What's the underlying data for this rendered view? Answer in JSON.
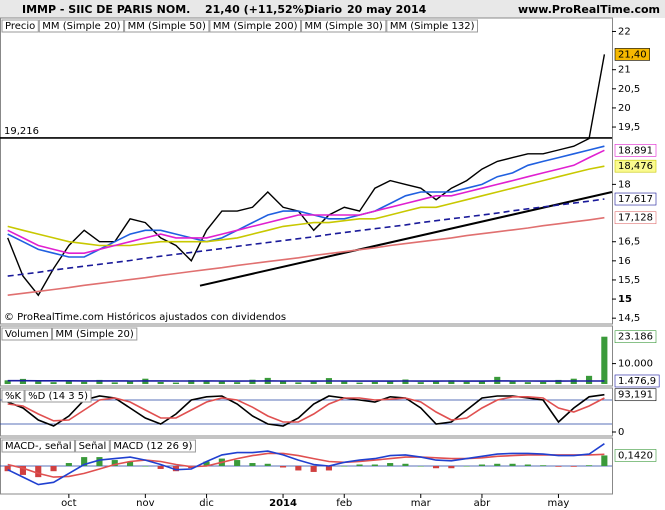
{
  "header": {
    "title": "IMMP - SIIC DE PARIS NOM.",
    "quote": "21,40 (+11,52%)",
    "period": "Diario",
    "date": "20 may 2014",
    "site": "www.ProRealTime.com"
  },
  "chart_data": [
    {
      "type": "line",
      "ylim": [
        14.4,
        22.3
      ],
      "yticks": [
        {
          "value": 14.5,
          "label": "14,5"
        },
        15,
        {
          "value": 15.5,
          "label": "15,5"
        },
        16,
        {
          "value": 16.5,
          "label": "16,5"
        },
        18,
        {
          "value": 19.5,
          "label": "19,5"
        },
        20,
        {
          "value": 20.5,
          "label": "20,5"
        },
        21,
        22
      ],
      "hline": {
        "value": 19.216,
        "label": "19,216"
      },
      "trendlines": [
        {
          "values": [
            15.35,
            17.8
          ],
          "color": "#000000"
        }
      ],
      "note": "© ProRealTime.com  Históricos ajustados con dividendos",
      "series": [
        {
          "name": "Precio",
          "color": "#000000",
          "last_label": "21,40",
          "label_background": "#f5b800",
          "values": [
            16.6,
            15.6,
            15.1,
            15.8,
            16.4,
            16.8,
            16.5,
            16.5,
            17.1,
            17.0,
            16.6,
            16.4,
            16.0,
            16.8,
            17.3,
            17.3,
            17.4,
            17.8,
            17.4,
            17.3,
            16.8,
            17.2,
            17.4,
            17.3,
            17.9,
            18.1,
            18.0,
            17.9,
            17.6,
            17.9,
            18.1,
            18.4,
            18.6,
            18.7,
            18.8,
            18.8,
            18.9,
            19.0,
            19.2,
            21.4
          ]
        },
        {
          "name": "MM (Simple 20)",
          "color": "#2060e0",
          "values": [
            16.7,
            16.5,
            16.3,
            16.2,
            16.1,
            16.1,
            16.3,
            16.5,
            16.7,
            16.8,
            16.8,
            16.7,
            16.6,
            16.5,
            16.6,
            16.8,
            17.0,
            17.2,
            17.3,
            17.3,
            17.2,
            17.1,
            17.1,
            17.2,
            17.3,
            17.5,
            17.7,
            17.8,
            17.8,
            17.8,
            17.9,
            18.0,
            18.2,
            18.3,
            18.5,
            18.6,
            18.7,
            18.8,
            18.9,
            19.0
          ]
        },
        {
          "name": "MM (Simple 50)",
          "color": "#c8c800",
          "last_label": "18,476",
          "label_background": "#fafa90",
          "values": [
            16.9,
            16.8,
            16.7,
            16.6,
            16.5,
            16.45,
            16.4,
            16.4,
            16.4,
            16.45,
            16.5,
            16.5,
            16.5,
            16.5,
            16.55,
            16.6,
            16.7,
            16.8,
            16.9,
            16.95,
            17.0,
            17.0,
            17.05,
            17.1,
            17.1,
            17.2,
            17.3,
            17.4,
            17.4,
            17.5,
            17.6,
            17.7,
            17.8,
            17.9,
            18.0,
            18.1,
            18.2,
            18.3,
            18.4,
            18.476
          ]
        },
        {
          "name": "MM (Simple 200)",
          "color": "#e07070",
          "last_label": "17,128",
          "label_background": "#ffffff",
          "values": [
            15.1,
            15.15,
            15.2,
            15.25,
            15.3,
            15.36,
            15.41,
            15.46,
            15.51,
            15.56,
            15.62,
            15.67,
            15.72,
            15.77,
            15.82,
            15.88,
            15.93,
            15.98,
            16.03,
            16.08,
            16.14,
            16.19,
            16.24,
            16.29,
            16.34,
            16.4,
            16.45,
            16.5,
            16.55,
            16.6,
            16.66,
            16.71,
            16.76,
            16.81,
            16.86,
            16.92,
            16.97,
            17.02,
            17.07,
            17.128
          ]
        },
        {
          "name": "MM (Simple 30)",
          "color": "#e020d0",
          "last_label": "18,891",
          "label_background": "#ffffff",
          "values": [
            16.8,
            16.6,
            16.4,
            16.3,
            16.2,
            16.2,
            16.3,
            16.4,
            16.5,
            16.6,
            16.7,
            16.6,
            16.6,
            16.6,
            16.7,
            16.8,
            16.9,
            17.0,
            17.1,
            17.2,
            17.2,
            17.2,
            17.2,
            17.2,
            17.3,
            17.4,
            17.5,
            17.6,
            17.7,
            17.7,
            17.8,
            17.9,
            18.0,
            18.1,
            18.2,
            18.3,
            18.4,
            18.5,
            18.7,
            18.891
          ]
        },
        {
          "name": "MM (Simple 132)",
          "color": "#1a1a9a",
          "dashed": true,
          "last_label": "17,617",
          "label_background": "#ffffff",
          "values": [
            15.6,
            15.65,
            15.7,
            15.76,
            15.81,
            15.86,
            15.91,
            15.96,
            16.01,
            16.07,
            16.12,
            16.17,
            16.22,
            16.27,
            16.32,
            16.38,
            16.43,
            16.48,
            16.53,
            16.58,
            16.63,
            16.69,
            16.74,
            16.79,
            16.84,
            16.89,
            16.94,
            17.0,
            17.05,
            17.1,
            17.15,
            17.2,
            17.25,
            17.31,
            17.36,
            17.41,
            17.46,
            17.51,
            17.56,
            17.617
          ]
        }
      ]
    },
    {
      "type": "bar",
      "ylim": [
        0,
        25000
      ],
      "yticks": [
        {
          "value": 10000,
          "label": "10.000"
        }
      ],
      "series": [
        {
          "name": "Volumen",
          "color": "#3a9a3a",
          "last_label": "23.186",
          "label_background": "#ffffff",
          "values": [
            1800,
            2500,
            1200,
            900,
            1500,
            1100,
            2000,
            800,
            1300,
            2600,
            1000,
            700,
            1900,
            1600,
            1200,
            900,
            2100,
            3000,
            1400,
            800,
            1100,
            2900,
            1200,
            700,
            1000,
            1500,
            2200,
            900,
            1300,
            1800,
            1100,
            1600,
            3500,
            1200,
            900,
            1000,
            2000,
            2600,
            4000,
            23186
          ]
        },
        {
          "name": "MM (Simple 20)",
          "color": "#1a1aa0",
          "last_label": "1.476,9",
          "label_background": "#ffffff",
          "values": [
            1600,
            1620,
            1580,
            1550,
            1560,
            1520,
            1540,
            1500,
            1480,
            1520,
            1510,
            1470,
            1480,
            1500,
            1460,
            1430,
            1450,
            1500,
            1490,
            1460,
            1440,
            1490,
            1470,
            1430,
            1420,
            1430,
            1460,
            1440,
            1430,
            1450,
            1420,
            1440,
            1500,
            1480,
            1450,
            1430,
            1440,
            1460,
            1470,
            1476.9
          ]
        }
      ]
    },
    {
      "type": "line",
      "ylim": [
        0,
        100
      ],
      "yticks": [
        0
      ],
      "levels": [
        80,
        20
      ],
      "series": [
        {
          "name": "%K",
          "color": "#000000",
          "last_label": "93,191",
          "label_background": "#ffffff",
          "values": [
            75,
            60,
            30,
            15,
            40,
            80,
            90,
            85,
            60,
            35,
            20,
            45,
            80,
            88,
            90,
            70,
            40,
            20,
            15,
            35,
            70,
            90,
            85,
            80,
            75,
            88,
            85,
            60,
            20,
            25,
            55,
            85,
            90,
            90,
            85,
            80,
            25,
            60,
            88,
            93.191
          ]
        },
        {
          "name": "%D (14 3 5)",
          "color": "#e05050",
          "values": [
            70,
            65,
            45,
            28,
            30,
            55,
            80,
            85,
            75,
            55,
            35,
            35,
            55,
            75,
            85,
            80,
            62,
            40,
            25,
            25,
            45,
            70,
            85,
            85,
            80,
            82,
            85,
            75,
            50,
            30,
            35,
            60,
            80,
            88,
            88,
            85,
            60,
            50,
            65,
            85
          ]
        }
      ]
    },
    {
      "type": "macd",
      "ylim": [
        -0.35,
        0.35
      ],
      "yticks": [],
      "categories": [
        null,
        null,
        null,
        null,
        "oct",
        null,
        null,
        null,
        null,
        "nov",
        null,
        null,
        null,
        "dic",
        null,
        null,
        null,
        null,
        "2014",
        null,
        null,
        null,
        "feb",
        null,
        null,
        null,
        null,
        "mar",
        null,
        null,
        null,
        "abr",
        null,
        null,
        null,
        null,
        "may",
        null,
        null,
        null
      ],
      "series": [
        {
          "name": "MACD-, señal",
          "color": "#3a9a3a",
          "negative_color": "#d04040",
          "last_label": "0,1420",
          "label_background": "#ffffff",
          "values": [
            -0.07,
            -0.12,
            -0.15,
            -0.07,
            0.04,
            0.12,
            0.12,
            0.08,
            0.06,
            0.0,
            -0.04,
            -0.07,
            -0.03,
            0.06,
            0.1,
            0.08,
            0.04,
            0.03,
            -0.02,
            -0.06,
            -0.08,
            -0.06,
            0.0,
            0.02,
            0.02,
            0.04,
            0.03,
            0.0,
            -0.03,
            -0.03,
            0.0,
            0.02,
            0.03,
            0.03,
            0.02,
            0.01,
            -0.01,
            -0.01,
            0.01,
            0.142
          ]
        },
        {
          "name": "Señal",
          "color": "#e05050",
          "values": [
            0.02,
            -0.03,
            -0.1,
            -0.15,
            -0.14,
            -0.1,
            -0.04,
            0.02,
            0.06,
            0.08,
            0.06,
            0.02,
            -0.01,
            0.0,
            0.05,
            0.1,
            0.14,
            0.17,
            0.17,
            0.14,
            0.1,
            0.06,
            0.05,
            0.06,
            0.08,
            0.1,
            0.12,
            0.12,
            0.11,
            0.1,
            0.1,
            0.11,
            0.13,
            0.14,
            0.15,
            0.15,
            0.15,
            0.15,
            0.15,
            0.158
          ]
        },
        {
          "name": "MACD (12 26 9)",
          "color": "#2040d0",
          "values": [
            -0.05,
            -0.15,
            -0.25,
            -0.22,
            -0.1,
            0.02,
            0.08,
            0.1,
            0.12,
            0.08,
            0.02,
            -0.05,
            -0.04,
            0.06,
            0.15,
            0.18,
            0.18,
            0.2,
            0.15,
            0.08,
            0.02,
            0.0,
            0.05,
            0.08,
            0.1,
            0.14,
            0.15,
            0.12,
            0.08,
            0.07,
            0.1,
            0.13,
            0.16,
            0.17,
            0.17,
            0.16,
            0.14,
            0.14,
            0.16,
            0.3
          ]
        }
      ]
    }
  ]
}
